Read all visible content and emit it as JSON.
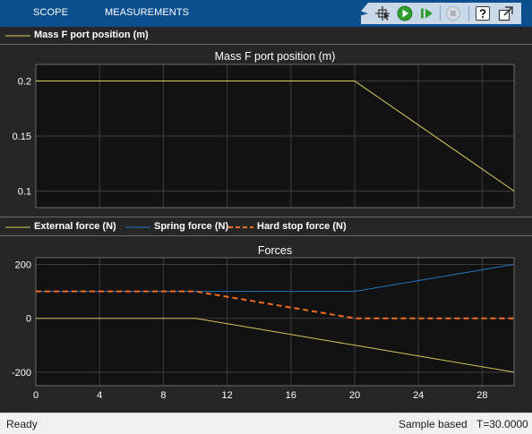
{
  "toolbar": {
    "tabs": [
      "SCOPE",
      "MEASUREMENTS"
    ],
    "icons": [
      "highlight-simulink-block-icon",
      "run-icon",
      "step-forward-icon",
      "stop-icon",
      "help-icon",
      "undock-icon"
    ],
    "accent_color": "#0b4f8f"
  },
  "legend1": {
    "items": [
      {
        "label": "Mass F port position (m)",
        "color": "#e0d060",
        "dash": "solid"
      }
    ]
  },
  "legend2": {
    "items": [
      {
        "label": "External force (N)",
        "color": "#d4c45a",
        "dash": "solid"
      },
      {
        "label": "Spring force (N)",
        "color": "#1f77c4",
        "dash": "solid"
      },
      {
        "label": "Hard stop force (N)",
        "color": "#f26b21",
        "dash": "dashed"
      }
    ]
  },
  "chart_data": [
    {
      "type": "line",
      "title": "Mass F port position (m)",
      "xlabel": "",
      "ylabel": "",
      "xlim": [
        0,
        30
      ],
      "ylim": [
        0.085,
        0.215
      ],
      "xticks": [
        0,
        4,
        8,
        12,
        16,
        20,
        24,
        28
      ],
      "yticks": [
        0.1,
        0.15,
        0.2
      ],
      "ytick_labels": [
        "0.1",
        "0.15",
        "0.2"
      ],
      "show_x_tick_labels": false,
      "grid": true,
      "series": [
        {
          "name": "Mass F port position (m)",
          "color": "#e0d060",
          "dash": "solid",
          "x": [
            0,
            20,
            30
          ],
          "y": [
            0.2,
            0.2,
            0.1
          ]
        }
      ]
    },
    {
      "type": "line",
      "title": "Forces",
      "xlabel": "",
      "ylabel": "",
      "xlim": [
        0,
        30
      ],
      "ylim": [
        -250,
        225
      ],
      "xticks": [
        0,
        4,
        8,
        12,
        16,
        20,
        24,
        28
      ],
      "xtick_labels": [
        "0",
        "4",
        "8",
        "12",
        "16",
        "20",
        "24",
        "28"
      ],
      "yticks": [
        -200,
        0,
        200
      ],
      "ytick_labels": [
        "-200",
        "0",
        "200"
      ],
      "show_x_tick_labels": true,
      "grid": true,
      "series": [
        {
          "name": "Spring force (N)",
          "color": "#1f77c4",
          "dash": "solid",
          "x": [
            0,
            10,
            20,
            30
          ],
          "y": [
            100,
            100,
            100,
            200
          ]
        },
        {
          "name": "External force (N)",
          "color": "#d4c45a",
          "dash": "solid",
          "x": [
            0,
            10,
            20,
            30
          ],
          "y": [
            0,
            0,
            -100,
            -200
          ]
        },
        {
          "name": "Hard stop force (N)",
          "color": "#f26b21",
          "dash": "dashed",
          "x": [
            0,
            10,
            20,
            30
          ],
          "y": [
            100,
            100,
            0,
            0
          ]
        }
      ]
    }
  ],
  "status": {
    "state": "Ready",
    "mode": "Sample based",
    "time": "T=30.0000"
  }
}
